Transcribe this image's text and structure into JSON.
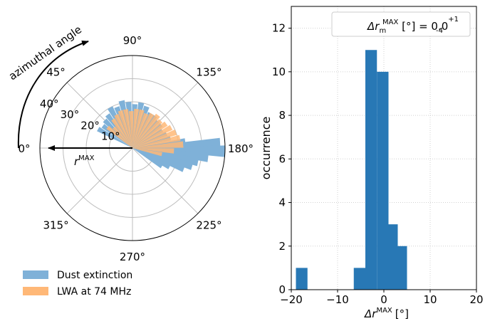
{
  "chart_data": [
    {
      "type": "polar-bar",
      "angle_tick_labels": [
        "0°",
        "45°",
        "90°",
        "135°",
        "180°",
        "225°",
        "270°",
        "315°"
      ],
      "radial_tick_labels": [
        "10°",
        "20°",
        "30°",
        "40°"
      ],
      "radial_ticks": [
        10,
        20,
        30,
        40
      ],
      "radial_max": 40,
      "annotations": {
        "arc_label": "azimuthal angle",
        "radius_label": "r",
        "radius_label_sup": "MAX"
      },
      "legend": {
        "placement": "bottom-left",
        "entries": [
          "Dust extinction",
          "LWA at 74 MHz"
        ]
      },
      "colors": {
        "dust": "#7fb1d8",
        "lwa": "#ffb877"
      },
      "series": [
        {
          "name": "Dust extinction",
          "bars": [
            {
              "angle": 29,
              "r": 17
            },
            {
              "angle": 37,
              "r": 16
            },
            {
              "angle": 45,
              "r": 17
            },
            {
              "angle": 53,
              "r": 18
            },
            {
              "angle": 61,
              "r": 20
            },
            {
              "angle": 69,
              "r": 19
            },
            {
              "angle": 77,
              "r": 21
            },
            {
              "angle": 85,
              "r": 20
            },
            {
              "angle": 93,
              "r": 19
            },
            {
              "angle": 101,
              "r": 20
            },
            {
              "angle": 109,
              "r": 19
            },
            {
              "angle": 117,
              "r": 17
            },
            {
              "angle": 125,
              "r": 17
            },
            {
              "angle": 133,
              "r": 16
            },
            {
              "angle": 141,
              "r": 16
            },
            {
              "angle": 149,
              "r": 15
            },
            {
              "angle": 157,
              "r": 16
            },
            {
              "angle": 165,
              "r": 17
            },
            {
              "angle": 173,
              "r": 23
            },
            {
              "angle": 177,
              "r": 38
            },
            {
              "angle": 182,
              "r": 40
            },
            {
              "angle": 187,
              "r": 33
            },
            {
              "angle": 192,
              "r": 29
            },
            {
              "angle": 197,
              "r": 27
            },
            {
              "angle": 202,
              "r": 24
            },
            {
              "angle": 207,
              "r": 18
            },
            {
              "angle": 212,
              "r": 15
            }
          ]
        },
        {
          "name": "LWA at 74 MHz",
          "bars": [
            {
              "angle": 40,
              "r": 14
            },
            {
              "angle": 48,
              "r": 12
            },
            {
              "angle": 56,
              "r": 15
            },
            {
              "angle": 64,
              "r": 16
            },
            {
              "angle": 72,
              "r": 17
            },
            {
              "angle": 80,
              "r": 17
            },
            {
              "angle": 88,
              "r": 16
            },
            {
              "angle": 96,
              "r": 17
            },
            {
              "angle": 104,
              "r": 17
            },
            {
              "angle": 112,
              "r": 16
            },
            {
              "angle": 120,
              "r": 17
            },
            {
              "angle": 128,
              "r": 18
            },
            {
              "angle": 136,
              "r": 17
            },
            {
              "angle": 144,
              "r": 18
            },
            {
              "angle": 152,
              "r": 19
            },
            {
              "angle": 160,
              "r": 20
            },
            {
              "angle": 168,
              "r": 21
            },
            {
              "angle": 176,
              "r": 22
            },
            {
              "angle": 184,
              "r": 18
            },
            {
              "angle": 192,
              "r": 13
            }
          ]
        }
      ]
    },
    {
      "type": "bar",
      "xlabel": "Δr",
      "xlabel_sup": "MAX",
      "xlabel_unit": "[°]",
      "ylabel": "occurrence",
      "xlim": [
        -20,
        20
      ],
      "ylim": [
        0,
        13
      ],
      "xticks": [
        -20,
        -10,
        0,
        10,
        20
      ],
      "xtick_labels": [
        "−20",
        "−10",
        "0",
        "10",
        "20"
      ],
      "yticks": [
        0,
        2,
        4,
        6,
        8,
        10,
        12
      ],
      "grid": true,
      "legend": {
        "placement": "top-right",
        "text": "Δr",
        "sub": "m",
        "sup": "MAX",
        "value_text": " [°] = 0.0",
        "upper": "+1",
        "lower": "-4"
      },
      "bar_color": "#2878b5",
      "bars": [
        {
          "x0": -19,
          "x1": -16.5,
          "value": 1
        },
        {
          "x0": -6.5,
          "x1": -4,
          "value": 1
        },
        {
          "x0": -4,
          "x1": -1.5,
          "value": 11
        },
        {
          "x0": -1.5,
          "x1": 1,
          "value": 10
        },
        {
          "x0": 1,
          "x1": 3,
          "value": 3
        },
        {
          "x0": 3,
          "x1": 5,
          "value": 2
        }
      ]
    }
  ]
}
